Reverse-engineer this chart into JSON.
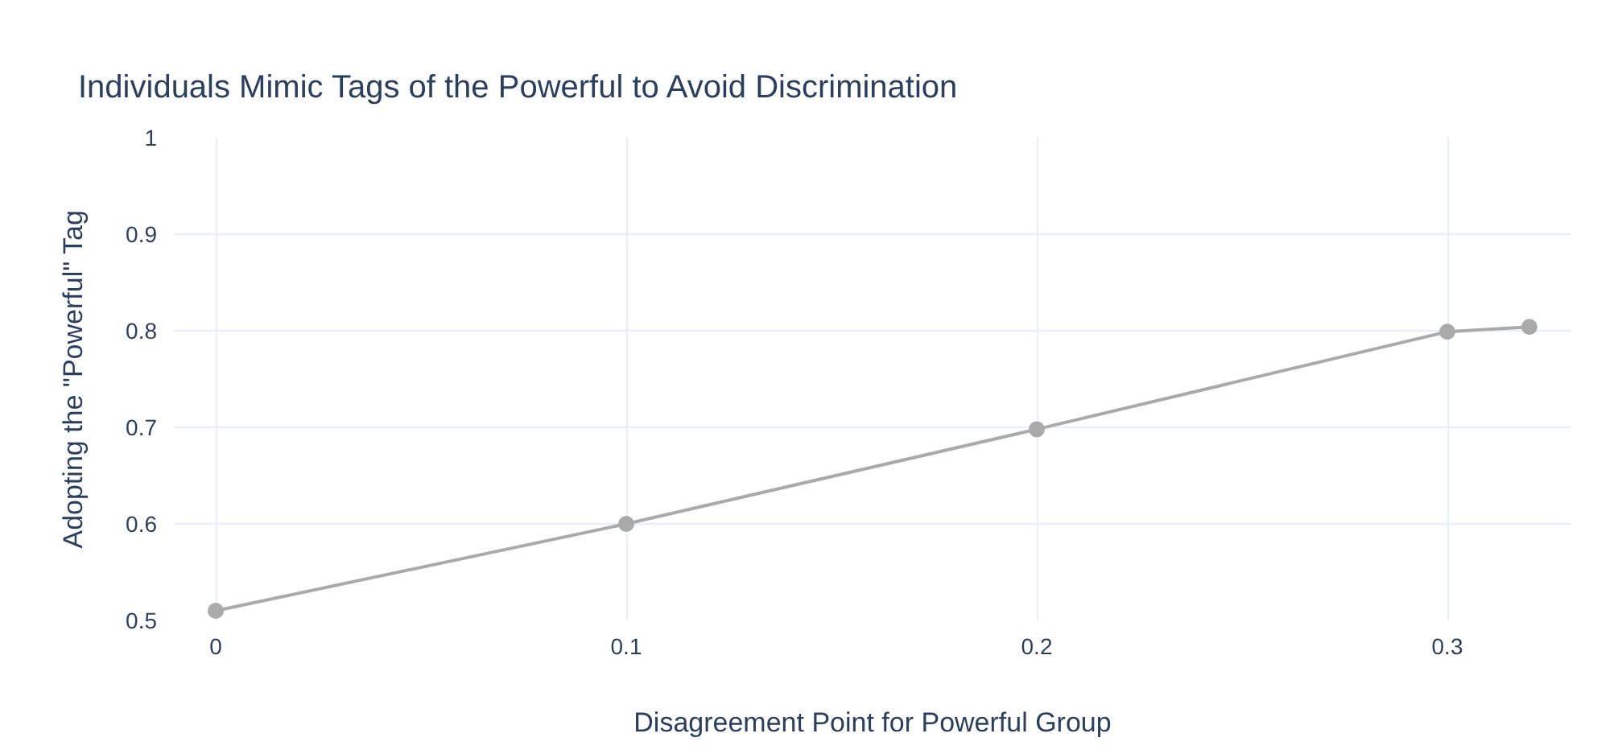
{
  "chart_data": {
    "type": "line",
    "title": "Individuals Mimic Tags of the Powerful to Avoid Discrimination",
    "xlabel": "Disagreement Point for Powerful Group",
    "ylabel": "Adopting the \"Powerful\" Tag",
    "x": [
      0,
      0.1,
      0.2,
      0.3,
      0.32
    ],
    "series": [
      {
        "color": "#aaaaaa",
        "values": [
          0.51,
          0.6,
          0.698,
          0.799,
          0.804
        ]
      }
    ],
    "xlim": [
      -0.01,
      0.33
    ],
    "ylim": [
      0.5,
      1
    ],
    "xticks": [
      0,
      0.1,
      0.2,
      0.3
    ],
    "yticks": [
      0.5,
      0.6,
      0.7,
      0.8,
      0.9,
      1
    ],
    "grid": true,
    "marker": "circle",
    "line_style": "solid"
  }
}
